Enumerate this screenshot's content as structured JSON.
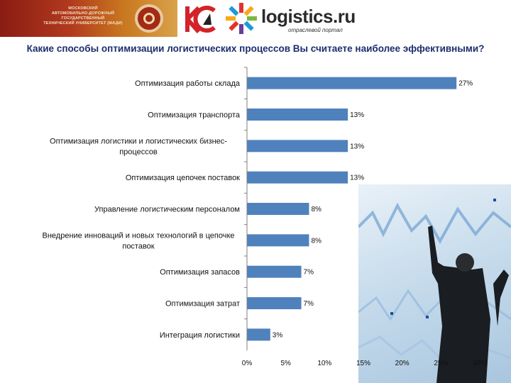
{
  "header": {
    "madi_logo_text": [
      "МОСКОВСКИЙ",
      "АВТОМОБИЛЬНО-ДОРОЖНЫЙ ГОСУДАРСТВЕННЫЙ",
      "ТЕХНИЧЕСКИЙ УНИВЕРСИТЕТ (МАДИ)"
    ],
    "logistics_name": "logistics.ru",
    "logistics_sub": "отраслевой портал"
  },
  "colors": {
    "bar": "#4f81bd",
    "title": "#1a2e6e",
    "axis": "#7f7f7f"
  },
  "chart_data": {
    "type": "bar",
    "orientation": "horizontal",
    "title": "Какие способы оптимизации логистических процессов Вы считаете наиболее эффективными?",
    "categories": [
      "Оптимизация работы склада",
      "Оптимизация транспорта",
      "Оптимизация логистики и логистических бизнес-процессов",
      "Оптимизация цепочек поставок",
      "Управление логистическим персоналом",
      "Внедрение инноваций и новых технологий в цепочке поставок",
      "Оптимизация запасов",
      "Оптимизация затрат",
      "Интеграция логистики"
    ],
    "category_lines": [
      [
        "Оптимизация работы склада"
      ],
      [
        "Оптимизация транспорта"
      ],
      [
        "Оптимизация логистики и логистических бизнес-",
        "процессов"
      ],
      [
        "Оптимизация цепочек поставок"
      ],
      [
        "Управление логистическим персоналом"
      ],
      [
        "Внедрение инноваций и новых технологий в цепочке",
        "поставок"
      ],
      [
        "Оптимизация запасов"
      ],
      [
        "Оптимизация затрат"
      ],
      [
        "Интеграция логистики"
      ]
    ],
    "values": [
      27,
      13,
      13,
      13,
      8,
      8,
      7,
      7,
      3
    ],
    "value_labels": [
      "27%",
      "13%",
      "13%",
      "13%",
      "8%",
      "8%",
      "7%",
      "7%",
      "3%"
    ],
    "xlim": [
      0,
      30
    ],
    "xticks": [
      0,
      5,
      10,
      15,
      20,
      25,
      30
    ],
    "xtick_labels": [
      "0%",
      "5%",
      "10%",
      "15%",
      "20%",
      "25%",
      "30%"
    ],
    "grid": false,
    "legend": "none"
  }
}
